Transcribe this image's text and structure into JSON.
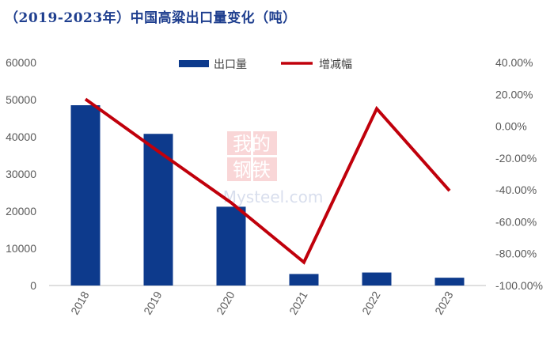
{
  "title": "（2019-2023年）中国高粱出口量变化（吨）",
  "watermark": {
    "line1": "我的",
    "line2": "钢铁",
    "line3": "Mysteel.com"
  },
  "chart_data": {
    "type": "bar+line",
    "categories": [
      "2018",
      "2019",
      "2020",
      "2021",
      "2022",
      "2023"
    ],
    "series": [
      {
        "name": "出口量",
        "type": "bar",
        "axis": "left",
        "color": "#0d3a8c",
        "values": [
          48500,
          40800,
          21200,
          3100,
          3500,
          2100
        ]
      },
      {
        "name": "增减幅",
        "type": "line",
        "axis": "right",
        "color": "#c0000b",
        "values": [
          17.0,
          -15.8,
          -48.0,
          -85.4,
          11.0,
          -40.5
        ]
      }
    ],
    "yleft": {
      "min": 0,
      "max": 60000,
      "ticks": [
        "0",
        "10000",
        "20000",
        "30000",
        "40000",
        "50000",
        "60000"
      ]
    },
    "yright": {
      "min": -100,
      "max": 40,
      "ticks": [
        "-100.00%",
        "-80.00%",
        "-60.00%",
        "-40.00%",
        "-20.00%",
        "0.00%",
        "20.00%",
        "40.00%"
      ]
    },
    "legend": "top-center",
    "grid": false
  }
}
